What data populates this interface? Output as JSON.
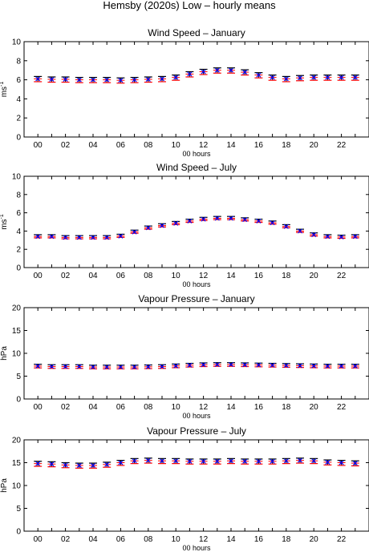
{
  "figure": {
    "title": "Hemsby (2020s) Low – hourly means"
  },
  "colors": {
    "errorbar": "#000000",
    "mean_cross": "#0000ff",
    "baseline_tick": "#ff0000",
    "lower_tick": "#ff0000"
  },
  "chart_data": [
    {
      "type": "scatter",
      "title": "Wind Speed – January",
      "xlabel": "00 hours",
      "ylabel": "ms",
      "ylabel_sup": "-1",
      "xlim": [
        -1,
        24
      ],
      "ylim": [
        0,
        10
      ],
      "yticks": [
        0,
        2,
        4,
        6,
        8,
        10
      ],
      "xtick_labels": [
        "00",
        "02",
        "04",
        "06",
        "08",
        "10",
        "12",
        "14",
        "16",
        "18",
        "20",
        "22"
      ],
      "x": [
        0,
        1,
        2,
        3,
        4,
        5,
        6,
        7,
        8,
        9,
        10,
        11,
        12,
        13,
        14,
        15,
        16,
        17,
        18,
        19,
        20,
        21,
        22,
        23
      ],
      "series": [
        {
          "values": [
            6.1,
            6.05,
            6.05,
            6.0,
            6.0,
            6.0,
            5.95,
            6.0,
            6.05,
            6.1,
            6.25,
            6.6,
            6.85,
            7.0,
            7.0,
            6.8,
            6.5,
            6.25,
            6.1,
            6.2,
            6.25,
            6.25,
            6.25,
            6.25
          ]
        },
        {
          "values": [
            5.8,
            5.75,
            5.75,
            5.7,
            5.7,
            5.7,
            5.65,
            5.7,
            5.75,
            5.8,
            5.95,
            6.3,
            6.55,
            6.7,
            6.7,
            6.5,
            6.2,
            5.95,
            5.8,
            5.9,
            5.95,
            5.95,
            5.95,
            5.95
          ]
        },
        {
          "values": [
            6.35,
            6.3,
            6.3,
            6.25,
            6.25,
            6.25,
            6.2,
            6.25,
            6.3,
            6.35,
            6.5,
            6.85,
            7.1,
            7.25,
            7.25,
            7.05,
            6.75,
            6.5,
            6.35,
            6.45,
            6.5,
            6.5,
            6.5,
            6.5
          ]
        }
      ]
    },
    {
      "type": "scatter",
      "title": "Wind Speed – July",
      "xlabel": "00 hours",
      "ylabel": "ms",
      "ylabel_sup": "-1",
      "xlim": [
        -1,
        24
      ],
      "ylim": [
        0,
        10
      ],
      "yticks": [
        0,
        2,
        4,
        6,
        8,
        10
      ],
      "xtick_labels": [
        "00",
        "02",
        "04",
        "06",
        "08",
        "10",
        "12",
        "14",
        "16",
        "18",
        "20",
        "22"
      ],
      "x": [
        0,
        1,
        2,
        3,
        4,
        5,
        6,
        7,
        8,
        9,
        10,
        11,
        12,
        13,
        14,
        15,
        16,
        17,
        18,
        19,
        20,
        21,
        22,
        23
      ],
      "series": [
        {
          "values": [
            3.4,
            3.4,
            3.3,
            3.3,
            3.3,
            3.3,
            3.45,
            3.9,
            4.35,
            4.6,
            4.85,
            5.1,
            5.3,
            5.4,
            5.4,
            5.25,
            5.1,
            4.9,
            4.5,
            4.0,
            3.6,
            3.4,
            3.35,
            3.4
          ]
        },
        {
          "values": [
            3.25,
            3.25,
            3.15,
            3.15,
            3.15,
            3.15,
            3.3,
            3.75,
            4.2,
            4.45,
            4.7,
            4.95,
            5.15,
            5.25,
            5.25,
            5.1,
            4.95,
            4.75,
            4.35,
            3.85,
            3.45,
            3.25,
            3.2,
            3.25
          ]
        },
        {
          "values": [
            3.6,
            3.6,
            3.5,
            3.5,
            3.5,
            3.5,
            3.65,
            4.1,
            4.55,
            4.8,
            5.05,
            5.3,
            5.5,
            5.6,
            5.6,
            5.45,
            5.3,
            5.1,
            4.7,
            4.2,
            3.8,
            3.6,
            3.55,
            3.6
          ]
        }
      ]
    },
    {
      "type": "scatter",
      "title": "Vapour Pressure – January",
      "xlabel": "00 hours",
      "ylabel": "hPa",
      "ylabel_sup": "",
      "xlim": [
        -1,
        24
      ],
      "ylim": [
        0,
        20
      ],
      "yticks": [
        0,
        5,
        10,
        15,
        20
      ],
      "xtick_labels": [
        "00",
        "02",
        "04",
        "06",
        "08",
        "10",
        "12",
        "14",
        "16",
        "18",
        "20",
        "22"
      ],
      "x": [
        0,
        1,
        2,
        3,
        4,
        5,
        6,
        7,
        8,
        9,
        10,
        11,
        12,
        13,
        14,
        15,
        16,
        17,
        18,
        19,
        20,
        21,
        22,
        23
      ],
      "series": [
        {
          "values": [
            7.2,
            7.1,
            7.1,
            7.1,
            7.0,
            7.0,
            7.0,
            7.0,
            7.05,
            7.1,
            7.25,
            7.4,
            7.5,
            7.55,
            7.55,
            7.5,
            7.45,
            7.4,
            7.35,
            7.3,
            7.25,
            7.2,
            7.2,
            7.2
          ]
        },
        {
          "values": [
            6.8,
            6.7,
            6.7,
            6.7,
            6.6,
            6.6,
            6.6,
            6.6,
            6.65,
            6.7,
            6.85,
            7.0,
            7.1,
            7.15,
            7.15,
            7.1,
            7.05,
            7.0,
            6.95,
            6.9,
            6.85,
            6.8,
            6.8,
            6.8
          ]
        },
        {
          "values": [
            7.6,
            7.5,
            7.5,
            7.5,
            7.4,
            7.4,
            7.4,
            7.4,
            7.45,
            7.5,
            7.65,
            7.8,
            7.9,
            7.95,
            7.95,
            7.9,
            7.85,
            7.8,
            7.75,
            7.7,
            7.65,
            7.6,
            7.6,
            7.6
          ]
        }
      ]
    },
    {
      "type": "scatter",
      "title": "Vapour Pressure – July",
      "xlabel": "00 hours",
      "ylabel": "hPa",
      "ylabel_sup": "",
      "xlim": [
        -1,
        24
      ],
      "ylim": [
        0,
        20
      ],
      "yticks": [
        0,
        5,
        10,
        15,
        20
      ],
      "xtick_labels": [
        "00",
        "02",
        "04",
        "06",
        "08",
        "10",
        "12",
        "14",
        "16",
        "18",
        "20",
        "22"
      ],
      "x": [
        0,
        1,
        2,
        3,
        4,
        5,
        6,
        7,
        8,
        9,
        10,
        11,
        12,
        13,
        14,
        15,
        16,
        17,
        18,
        19,
        20,
        21,
        22,
        23
      ],
      "series": [
        {
          "values": [
            14.8,
            14.7,
            14.5,
            14.4,
            14.4,
            14.6,
            15.0,
            15.4,
            15.5,
            15.4,
            15.4,
            15.3,
            15.3,
            15.3,
            15.4,
            15.3,
            15.3,
            15.3,
            15.4,
            15.5,
            15.4,
            15.1,
            15.0,
            14.9
          ]
        },
        {
          "values": [
            14.2,
            14.1,
            13.9,
            13.8,
            13.8,
            14.0,
            14.4,
            14.8,
            14.9,
            14.8,
            14.8,
            14.7,
            14.7,
            14.7,
            14.8,
            14.7,
            14.7,
            14.7,
            14.8,
            14.9,
            14.8,
            14.5,
            14.4,
            14.3
          ]
        },
        {
          "values": [
            15.3,
            15.2,
            15.0,
            14.9,
            14.9,
            15.1,
            15.5,
            15.9,
            16.0,
            15.9,
            15.9,
            15.8,
            15.8,
            15.8,
            15.9,
            15.8,
            15.8,
            15.8,
            15.9,
            16.0,
            15.9,
            15.6,
            15.5,
            15.4
          ]
        }
      ]
    }
  ]
}
